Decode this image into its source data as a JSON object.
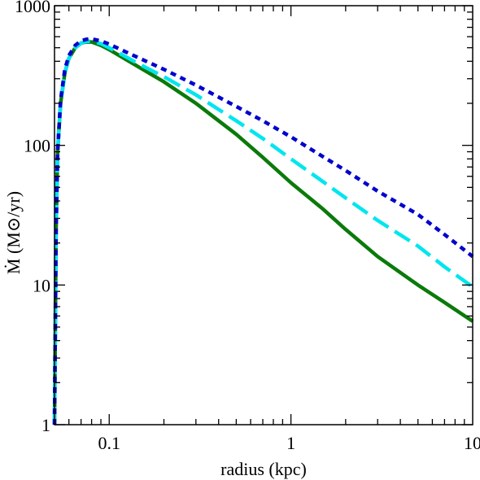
{
  "chart_data": {
    "type": "line",
    "xlabel": "radius (kpc)",
    "ylabel": "Ṁ (M⊙/yr)",
    "xscale": "log",
    "yscale": "log",
    "xlim": [
      0.05,
      10
    ],
    "ylim": [
      1,
      1000
    ],
    "grid": false,
    "x_ticks": [
      {
        "value": 0.1,
        "label": "0.1"
      },
      {
        "value": 1,
        "label": "1"
      },
      {
        "value": 10,
        "label": "10"
      }
    ],
    "y_ticks": [
      {
        "value": 1,
        "label": "1"
      },
      {
        "value": 10,
        "label": "10"
      },
      {
        "value": 100,
        "label": "100"
      },
      {
        "value": 1000,
        "label": "1000"
      }
    ],
    "series": [
      {
        "style": "solid",
        "color": "#0a7a0a",
        "points": [
          [
            0.05,
            1
          ],
          [
            0.051,
            25
          ],
          [
            0.052,
            90
          ],
          [
            0.054,
            200
          ],
          [
            0.057,
            330
          ],
          [
            0.06,
            420
          ],
          [
            0.065,
            500
          ],
          [
            0.07,
            540
          ],
          [
            0.075,
            550
          ],
          [
            0.08,
            550
          ],
          [
            0.09,
            520
          ],
          [
            0.1,
            485
          ],
          [
            0.15,
            355
          ],
          [
            0.2,
            285
          ],
          [
            0.3,
            200
          ],
          [
            0.5,
            120
          ],
          [
            0.7,
            82
          ],
          [
            1,
            54
          ],
          [
            1.5,
            35
          ],
          [
            2,
            25
          ],
          [
            3,
            16
          ],
          [
            5,
            10
          ],
          [
            7,
            7.5
          ],
          [
            10,
            5.5
          ]
        ]
      },
      {
        "style": "dashed",
        "color": "#00e5ee",
        "points": [
          [
            0.05,
            1
          ],
          [
            0.051,
            25
          ],
          [
            0.052,
            90
          ],
          [
            0.054,
            200
          ],
          [
            0.057,
            330
          ],
          [
            0.06,
            420
          ],
          [
            0.065,
            500
          ],
          [
            0.07,
            540
          ],
          [
            0.075,
            555
          ],
          [
            0.08,
            558
          ],
          [
            0.09,
            535
          ],
          [
            0.1,
            500
          ],
          [
            0.15,
            375
          ],
          [
            0.2,
            310
          ],
          [
            0.3,
            230
          ],
          [
            0.5,
            150
          ],
          [
            0.7,
            112
          ],
          [
            1,
            80
          ],
          [
            1.5,
            55
          ],
          [
            2,
            42
          ],
          [
            3,
            29
          ],
          [
            5,
            19
          ],
          [
            7,
            13.5
          ],
          [
            10,
            9.7
          ]
        ]
      },
      {
        "style": "dotted",
        "color": "#0000cd",
        "points": [
          [
            0.05,
            1
          ],
          [
            0.051,
            25
          ],
          [
            0.052,
            90
          ],
          [
            0.054,
            210
          ],
          [
            0.057,
            350
          ],
          [
            0.06,
            440
          ],
          [
            0.065,
            520
          ],
          [
            0.07,
            560
          ],
          [
            0.075,
            575
          ],
          [
            0.08,
            578
          ],
          [
            0.09,
            560
          ],
          [
            0.1,
            530
          ],
          [
            0.15,
            415
          ],
          [
            0.2,
            350
          ],
          [
            0.3,
            270
          ],
          [
            0.5,
            190
          ],
          [
            0.7,
            150
          ],
          [
            1,
            115
          ],
          [
            1.5,
            83
          ],
          [
            2,
            66
          ],
          [
            3,
            47
          ],
          [
            5,
            32
          ],
          [
            7,
            23
          ],
          [
            10,
            16
          ]
        ]
      }
    ]
  }
}
